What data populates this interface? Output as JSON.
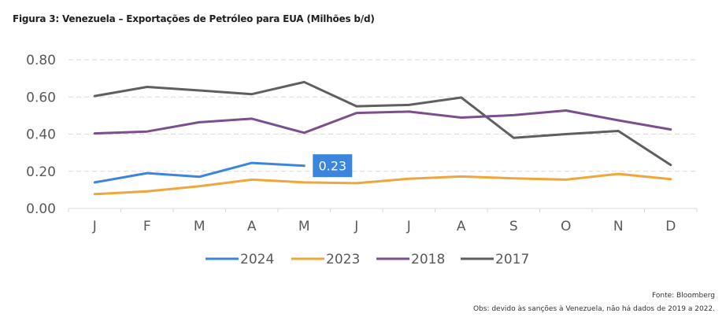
{
  "chart_data": {
    "type": "line",
    "title": "Figura 3: Venezuela – Exportações de Petróleo para EUA (Milhões b/d)",
    "xlabel": "",
    "ylabel": "",
    "categories": [
      "J",
      "F",
      "M",
      "A",
      "M",
      "J",
      "J",
      "A",
      "S",
      "O",
      "N",
      "D"
    ],
    "ylim": [
      0,
      0.8
    ],
    "yticks": [
      "0.00",
      "0.20",
      "0.40",
      "0.60",
      "0.80"
    ],
    "grid": true,
    "legend_position": "bottom",
    "series": [
      {
        "name": "2024",
        "color": "#3C85DE",
        "values": [
          0.14,
          0.19,
          0.17,
          0.245,
          0.23,
          null,
          null,
          null,
          null,
          null,
          null,
          null
        ]
      },
      {
        "name": "2023",
        "color": "#F0A73A",
        "values": [
          0.077,
          0.092,
          0.12,
          0.155,
          0.14,
          0.136,
          0.16,
          0.172,
          0.162,
          0.155,
          0.186,
          0.158
        ]
      },
      {
        "name": "2018",
        "color": "#7B4F8E",
        "values": [
          0.404,
          0.414,
          0.464,
          0.483,
          0.407,
          0.514,
          0.521,
          0.489,
          0.502,
          0.527,
          0.474,
          0.425
        ]
      },
      {
        "name": "2017",
        "color": "#5F5F5F",
        "values": [
          0.605,
          0.654,
          0.635,
          0.615,
          0.68,
          0.55,
          0.557,
          0.597,
          0.38,
          0.4,
          0.417,
          0.234
        ]
      }
    ],
    "annotations": [
      {
        "series": "2024",
        "category_index": 4,
        "text": "0.23",
        "background": "#3C85DE"
      }
    ]
  },
  "footer": {
    "source": "Fonte: Bloomberg",
    "note": "Obs: devido às sanções à Venezuela, não há dados de 2019 a 2022."
  }
}
